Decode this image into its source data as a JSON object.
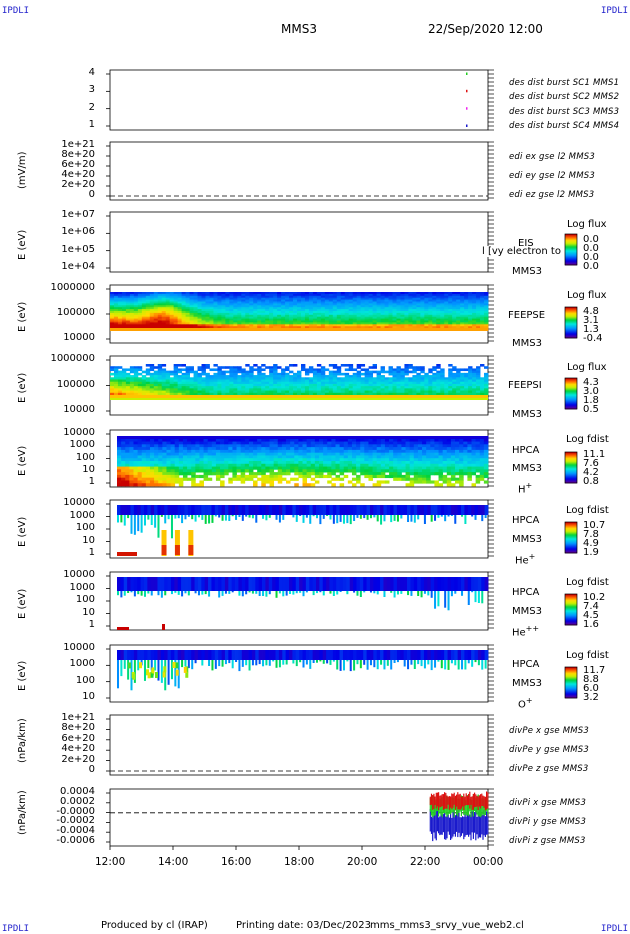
{
  "header": {
    "corner_labels": [
      "IPDLI",
      "IPDLI",
      "IPDLI",
      "IPDLI"
    ],
    "spacecraft": "MMS3",
    "date": "22/Sep/2020 12:00"
  },
  "footer": {
    "produced_by": "Produced by cl (IRAP)",
    "printing_date": "Printing date: 03/Dec/2023",
    "filename": "mms_mms3_srvy_vue_web2.cl"
  },
  "time_axis": {
    "ticks": [
      "12:00",
      "14:00",
      "16:00",
      "18:00",
      "20:00",
      "22:00",
      "00:00"
    ]
  },
  "colors": {
    "series_blue": "#1a1acc",
    "series_magenta": "#ee22ee",
    "series_red": "#dd1111",
    "series_green": "#22cc22",
    "corner": "#2222cc"
  },
  "chart_data": [
    {
      "type": "line",
      "panel": "burst-availability",
      "yticks": [
        "4",
        "3",
        "2",
        "1"
      ],
      "ylim": [
        0.5,
        4.5
      ],
      "series": [
        {
          "name": "des dist burst SC1 MMS1",
          "color": "#1a1acc",
          "x": [
            "23:18"
          ],
          "y": [
            1
          ]
        },
        {
          "name": "des dist burst SC2 MMS2",
          "color": "#ee22ee",
          "x": [
            "23:18"
          ],
          "y": [
            2
          ]
        },
        {
          "name": "des dist burst SC3 MMS3",
          "color": "#dd1111",
          "x": [
            "23:18"
          ],
          "y": [
            3
          ]
        },
        {
          "name": "des dist burst SC4 MMS4",
          "color": "#22cc22",
          "x": [
            "23:18"
          ],
          "y": [
            4
          ]
        }
      ]
    },
    {
      "type": "line",
      "panel": "edi-electric-field",
      "ylabel": "(mV/m)",
      "yticks": [
        "1e+21",
        "8e+20",
        "6e+20",
        "4e+20",
        "2e+20",
        "0"
      ],
      "series": [
        {
          "name": "edi ex gse l2 MMS3",
          "color": "#dd1111"
        },
        {
          "name": "edi ey gse l2 MMS3",
          "color": "#22cc22"
        },
        {
          "name": "edi ez gse l2 MMS3",
          "color": "#1a1acc"
        }
      ]
    },
    {
      "type": "heatmap",
      "panel": "eis",
      "ylabel": "E (eV)",
      "yticks": [
        "1e+07",
        "1e+06",
        "1e+05",
        "1e+04"
      ],
      "instrument": [
        "EIS",
        "MMS3"
      ],
      "overlay_text": "l [vy electron to",
      "colorbar": {
        "title": "Log flux",
        "values": [
          "0.0",
          "0.0",
          "0.0",
          "0.0"
        ]
      }
    },
    {
      "type": "heatmap",
      "panel": "feeps-electrons",
      "ylabel": "E (eV)",
      "yticks": [
        "1000000",
        "100000",
        "10000"
      ],
      "instrument": [
        "FEEPSE",
        "MMS3"
      ],
      "colorbar": {
        "title": "Log flux",
        "values": [
          "4.8",
          "3.1",
          "1.3",
          "-0.4"
        ]
      }
    },
    {
      "type": "heatmap",
      "panel": "feeps-ions",
      "ylabel": "E (eV)",
      "yticks": [
        "1000000",
        "100000",
        "10000"
      ],
      "instrument": [
        "FEEPSI",
        "MMS3"
      ],
      "colorbar": {
        "title": "Log flux",
        "values": [
          "4.3",
          "3.0",
          "1.8",
          "0.5"
        ]
      }
    },
    {
      "type": "heatmap",
      "panel": "hpca-h",
      "ylabel": "E (eV)",
      "yticks": [
        "10000",
        "1000",
        "100",
        "10",
        "1"
      ],
      "instrument": [
        "HPCA",
        "MMS3"
      ],
      "species": "H",
      "charge": "+",
      "colorbar": {
        "title": "Log fdist",
        "values": [
          "11.1",
          "7.6",
          "4.2",
          "0.8"
        ]
      }
    },
    {
      "type": "heatmap",
      "panel": "hpca-he",
      "ylabel": "E (eV)",
      "yticks": [
        "10000",
        "1000",
        "100",
        "10",
        "1"
      ],
      "instrument": [
        "HPCA",
        "MMS3"
      ],
      "species": "He",
      "charge": "+",
      "colorbar": {
        "title": "Log fdist",
        "values": [
          "10.7",
          "7.8",
          "4.9",
          "1.9"
        ]
      }
    },
    {
      "type": "heatmap",
      "panel": "hpca-hepp",
      "ylabel": "E (eV)",
      "yticks": [
        "10000",
        "1000",
        "100",
        "10",
        "1"
      ],
      "instrument": [
        "HPCA",
        "MMS3"
      ],
      "species": "He",
      "charge": "++",
      "colorbar": {
        "title": "Log fdist",
        "values": [
          "10.2",
          "7.4",
          "4.5",
          "1.6"
        ]
      }
    },
    {
      "type": "heatmap",
      "panel": "hpca-o",
      "ylabel": "E (eV)",
      "yticks": [
        "10000",
        "1000",
        "100",
        "10"
      ],
      "instrument": [
        "HPCA",
        "MMS3"
      ],
      "species": "O",
      "charge": "+",
      "colorbar": {
        "title": "Log fdist",
        "values": [
          "11.7",
          "8.8",
          "6.0",
          "3.2"
        ]
      }
    },
    {
      "type": "line",
      "panel": "divpe",
      "ylabel": "(nPa/km)",
      "yticks": [
        "1e+21",
        "8e+20",
        "6e+20",
        "4e+20",
        "2e+20",
        "0"
      ],
      "series": [
        {
          "name": "divPe x gse MMS3",
          "color": "#dd1111"
        },
        {
          "name": "divPe y gse MMS3",
          "color": "#22cc22"
        },
        {
          "name": "divPe z gse MMS3",
          "color": "#1a1acc"
        }
      ]
    },
    {
      "type": "line",
      "panel": "divpi",
      "ylabel": "(nPa/km)",
      "yticks": [
        "0.0004",
        "0.0002",
        "-0.0000",
        "-0.0002",
        "-0.0004",
        "-0.0006"
      ],
      "ylim": [
        -0.0007,
        0.0005
      ],
      "series": [
        {
          "name": "divPi x gse MMS3",
          "color": "#dd1111",
          "x_start": "22:10",
          "x_end": "00:00",
          "range": [
            5e-05,
            0.00045
          ]
        },
        {
          "name": "divPi y gse MMS3",
          "color": "#22cc22",
          "x_start": "22:10",
          "x_end": "00:00",
          "range": [
            -0.0001,
            0.0004
          ]
        },
        {
          "name": "divPi z gse MMS3",
          "color": "#1a1acc",
          "x_start": "22:10",
          "x_end": "00:00",
          "range": [
            -0.0006,
            0.0001
          ]
        }
      ]
    }
  ]
}
